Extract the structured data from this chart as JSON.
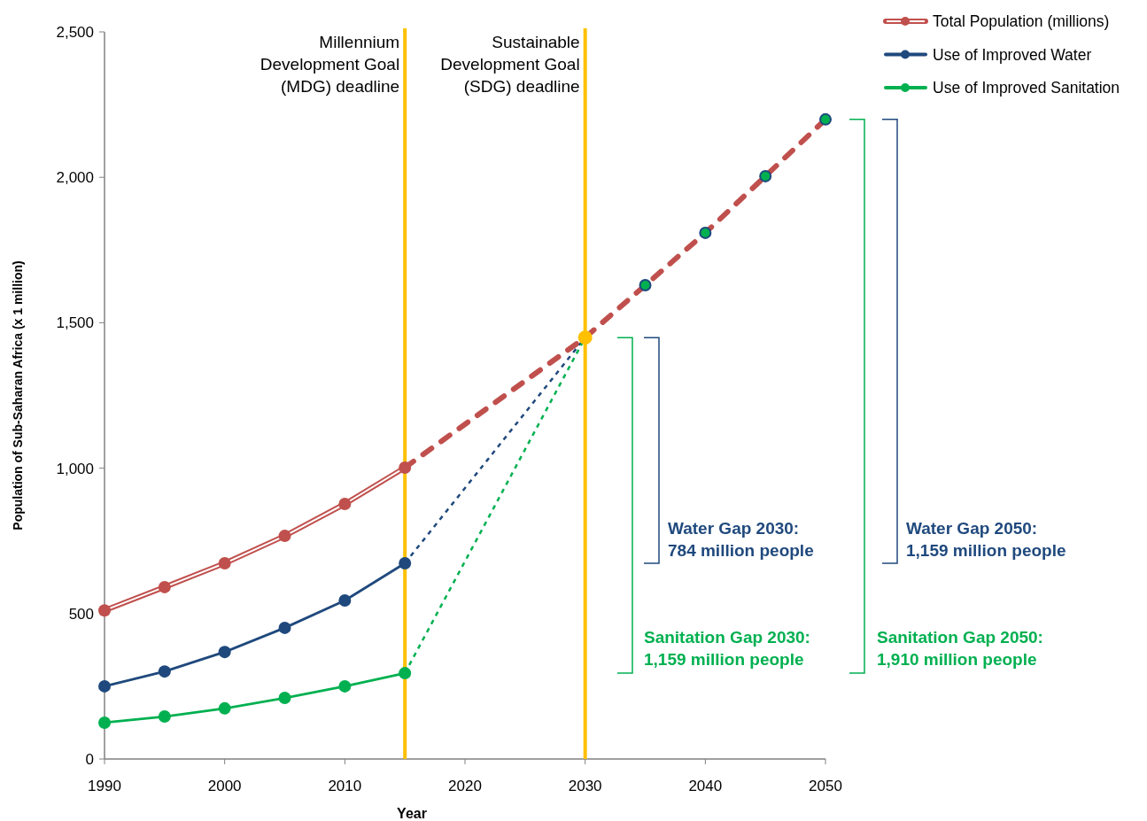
{
  "chart_data": {
    "type": "line",
    "xlabel": "Year",
    "ylabel": "Population of Sub-Saharan Africa (x 1 million)",
    "xlim": [
      1990,
      2050
    ],
    "xticks": [
      1990,
      2000,
      2010,
      2020,
      2030,
      2040,
      2050
    ],
    "ylim": [
      0,
      2500
    ],
    "yticks": [
      0,
      500,
      {
        "value": 1000,
        "label": "1,000"
      },
      {
        "value": 1500,
        "label": "1,500"
      },
      {
        "value": 2000,
        "label": "2,000"
      },
      {
        "value": 2500,
        "label": "2,500"
      }
    ],
    "grid": false,
    "legend": "top right",
    "marker": "circle",
    "line_style": "solid",
    "series": [
      {
        "name": "Total Population (millions)",
        "color": "#c0504d",
        "x": [
          1990,
          1995,
          2000,
          2005,
          2010,
          2015
        ],
        "values": [
          511,
          591,
          673,
          767,
          877,
          1002
        ]
      },
      {
        "name": "Use of Improved Water",
        "color": "#1f497d",
        "x": [
          1990,
          1995,
          2000,
          2005,
          2010,
          2015
        ],
        "values": [
          250,
          301,
          368,
          451,
          545,
          673
        ]
      },
      {
        "name": "Use of Improved Sanitation",
        "color": "#00b050",
        "x": [
          1990,
          1995,
          2000,
          2005,
          2010,
          2015
        ],
        "values": [
          125,
          146,
          174,
          210,
          250,
          295
        ]
      },
      {
        "color": "#c0504d",
        "x": [
          2015,
          2030,
          2035,
          2040,
          2045,
          2050
        ],
        "values": [
          1002,
          1449,
          1629,
          1809,
          2004,
          2199
        ],
        "line_style": "dashed",
        "marker": "none"
      },
      {
        "color": "#1f497d",
        "x": [
          2015,
          2030
        ],
        "values": [
          673,
          1449
        ],
        "line_style": "dashed",
        "marker": "none"
      },
      {
        "color": "#00b050",
        "x": [
          2015,
          2030
        ],
        "values": [
          295,
          1449
        ],
        "line_style": "dashed",
        "marker": "none"
      },
      {
        "type": "scatter",
        "color": "#00b050",
        "x": [
          2035,
          2040,
          2045,
          2050
        ],
        "values": [
          1629,
          1809,
          2004,
          2199
        ]
      },
      {
        "type": "scatter",
        "color": "#ffc000",
        "x": [
          2030
        ],
        "values": [
          1449
        ]
      }
    ],
    "ref_lines": [
      {
        "axis": "x",
        "value": 2015,
        "label": "Millennium Development Goal (MDG) deadline",
        "color": "#ffc000"
      },
      {
        "axis": "x",
        "value": 2030,
        "label": "Sustainable Development Goal (SDG) deadline",
        "color": "#ffc000"
      }
    ],
    "annotations": [
      "Water Gap 2030: 784 million people",
      "Sanitation Gap 2030: 1,159 million people",
      "Water Gap 2050: 1,159 million people",
      "Sanitation Gap 2050: 1,910 million people"
    ]
  }
}
